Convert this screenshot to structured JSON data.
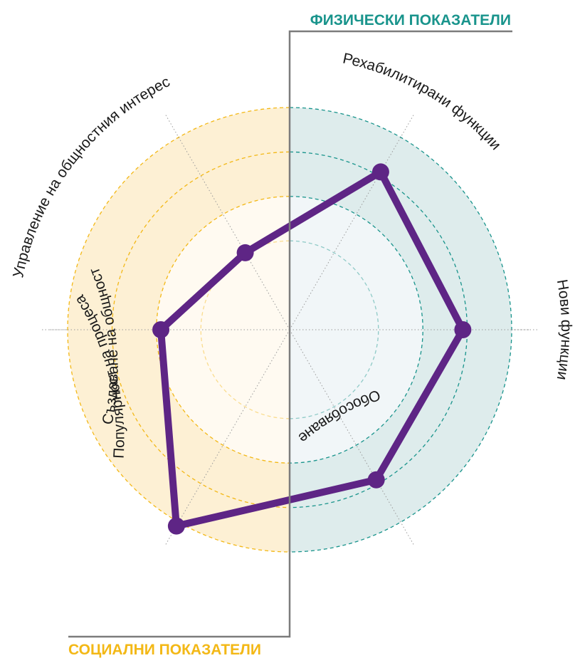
{
  "chart_data": {
    "type": "radar",
    "axes": [
      "Рехабилитирани функции",
      "Нови функции",
      "Обособяване",
      "Популярност на процеса",
      "Създаване на общност",
      "Управление на общностния интерес"
    ],
    "rlim": [
      0,
      5
    ],
    "rings": 5,
    "grid": true,
    "series": [
      {
        "values": [
          4.1,
          3.9,
          3.9,
          5.1,
          2.9,
          2.0
        ]
      }
    ],
    "groups": [
      {
        "label": "ФИЗИЧЕСКИ ПОКАЗАТЕЛИ",
        "side": "right",
        "axes": [
          "Рехабилитирани функции",
          "Нови функции",
          "Обособяване"
        ]
      },
      {
        "label": "СОЦИАЛНИ ПОКАЗАТЕЛИ",
        "side": "left",
        "axes": [
          "Популярност на процеса",
          "Създаване на общност",
          "Управление на общностния интерес"
        ]
      }
    ]
  },
  "colors": {
    "series": "#5e2585",
    "physical": "#19948c",
    "physical_fill": "#deecec",
    "physical_inner": "#f1f6f8",
    "social": "#f3b816",
    "social_fill": "#fdf0d4",
    "social_inner": "#fffaf1",
    "divider": "#7c7c7c",
    "spoke": "#9a9a9a"
  }
}
